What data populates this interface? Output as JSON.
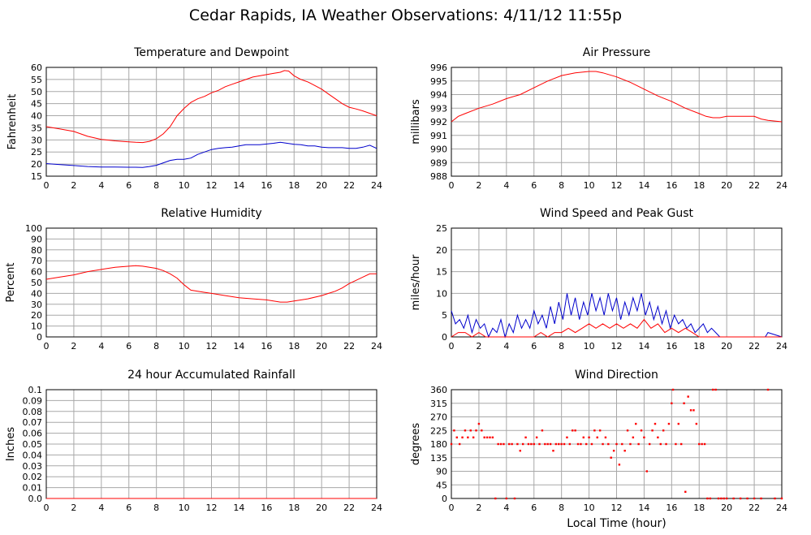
{
  "page": {
    "title": "Cedar Rapids, IA Weather Observations: 4/11/12 11:55p"
  },
  "chart_data": [
    {
      "id": "temp",
      "type": "line",
      "title": "Temperature and Dewpoint",
      "xlabel": "",
      "ylabel": "Fahrenheit",
      "xlim": [
        0,
        24
      ],
      "ylim": [
        15,
        60
      ],
      "xticks": [
        0,
        2,
        4,
        6,
        8,
        10,
        12,
        14,
        16,
        18,
        20,
        22,
        24
      ],
      "yticks": [
        15,
        20,
        25,
        30,
        35,
        40,
        45,
        50,
        55,
        60
      ],
      "ytick_labels": [
        "15",
        "20",
        "25",
        "30",
        "35",
        "40",
        "45",
        "50",
        "55",
        "60"
      ],
      "grid": true,
      "series": [
        {
          "color": "#ff0000",
          "x": [
            0,
            1,
            2,
            3,
            4,
            5,
            6,
            6.5,
            7,
            7.5,
            8,
            8.5,
            9,
            9.5,
            10,
            10.5,
            11,
            11.5,
            12,
            12.5,
            13,
            13.5,
            14,
            14.5,
            15,
            15.5,
            16,
            16.5,
            17,
            17.3,
            17.6,
            18,
            18.5,
            19,
            19.5,
            20,
            20.5,
            21,
            21.5,
            22,
            22.5,
            23,
            23.5,
            24
          ],
          "y": [
            35.5,
            34.5,
            33.5,
            31.5,
            30.2,
            29.6,
            29.2,
            29,
            28.9,
            29.4,
            30.5,
            32.5,
            35.5,
            40,
            43,
            45.5,
            47,
            48,
            49.5,
            50.5,
            52,
            53,
            54,
            55,
            56,
            56.5,
            57,
            57.5,
            58,
            58.7,
            58.5,
            56.5,
            55,
            54,
            52.5,
            51,
            49,
            47,
            45,
            43.5,
            42.8,
            42,
            41,
            40
          ]
        },
        {
          "color": "#0000cc",
          "x": [
            0,
            1,
            2,
            3,
            4,
            5,
            6,
            6.5,
            7,
            7.5,
            8,
            8.5,
            9,
            9.5,
            10,
            10.5,
            11,
            11.5,
            12,
            12.5,
            13,
            13.5,
            14,
            14.5,
            15,
            15.5,
            16,
            16.5,
            17,
            17.5,
            18,
            18.5,
            19,
            19.5,
            20,
            20.5,
            21,
            21.5,
            22,
            22.5,
            23,
            23.5,
            24
          ],
          "y": [
            20.2,
            19.8,
            19.4,
            19,
            18.8,
            18.8,
            18.7,
            18.7,
            18.6,
            19,
            19.5,
            20.5,
            21.5,
            22,
            22,
            22.5,
            24,
            25,
            26,
            26.5,
            26.8,
            27,
            27.5,
            28,
            28,
            28,
            28.3,
            28.6,
            29,
            28.6,
            28.2,
            28,
            27.5,
            27.5,
            27,
            26.8,
            26.8,
            26.8,
            26.5,
            26.5,
            27,
            27.8,
            26.5
          ]
        }
      ]
    },
    {
      "id": "pressure",
      "type": "line",
      "title": "Air Pressure",
      "xlabel": "",
      "ylabel": "millibars",
      "xlim": [
        0,
        24
      ],
      "ylim": [
        988,
        996
      ],
      "xticks": [
        0,
        2,
        4,
        6,
        8,
        10,
        12,
        14,
        16,
        18,
        20,
        22,
        24
      ],
      "yticks": [
        988,
        989,
        990,
        991,
        992,
        993,
        994,
        995,
        996
      ],
      "ytick_labels": [
        "988",
        "989",
        "990",
        "991",
        "992",
        "993",
        "994",
        "995",
        "996"
      ],
      "grid": true,
      "series": [
        {
          "color": "#ff0000",
          "x": [
            0,
            0.5,
            1,
            2,
            3,
            4,
            5,
            6,
            7,
            8,
            9,
            10,
            10.5,
            11,
            12,
            13,
            14,
            15,
            16,
            17,
            18,
            18.5,
            19,
            19.5,
            20,
            21,
            22,
            22.5,
            23,
            24
          ],
          "y": [
            992,
            992.4,
            992.6,
            993,
            993.3,
            993.7,
            994,
            994.5,
            995,
            995.4,
            995.6,
            995.7,
            995.7,
            995.6,
            995.3,
            994.9,
            994.4,
            993.9,
            993.5,
            993,
            992.6,
            992.4,
            992.3,
            992.3,
            992.4,
            992.4,
            992.4,
            992.2,
            992.1,
            992
          ]
        }
      ]
    },
    {
      "id": "humidity",
      "type": "line",
      "title": "Relative Humidity",
      "xlabel": "",
      "ylabel": "Percent",
      "xlim": [
        0,
        24
      ],
      "ylim": [
        0,
        100
      ],
      "xticks": [
        0,
        2,
        4,
        6,
        8,
        10,
        12,
        14,
        16,
        18,
        20,
        22,
        24
      ],
      "yticks": [
        0,
        10,
        20,
        30,
        40,
        50,
        60,
        70,
        80,
        90,
        100
      ],
      "ytick_labels": [
        "0",
        "10",
        "20",
        "30",
        "40",
        "50",
        "60",
        "70",
        "80",
        "90",
        "100"
      ],
      "grid": true,
      "series": [
        {
          "color": "#ff0000",
          "x": [
            0,
            1,
            2,
            3,
            4,
            5,
            6,
            6.5,
            7,
            7.5,
            8,
            8.5,
            9,
            9.5,
            10,
            10.5,
            11,
            11.5,
            12,
            13,
            14,
            15,
            16,
            16.5,
            17,
            17.5,
            18,
            19,
            20,
            20.5,
            21,
            21.5,
            22,
            22.5,
            23,
            23.5,
            24
          ],
          "y": [
            53,
            55,
            57,
            60,
            62,
            64,
            65,
            65.5,
            65,
            64,
            63,
            61,
            58,
            54,
            48,
            43,
            42,
            41,
            40,
            38,
            36,
            35,
            34,
            33,
            32,
            32,
            33,
            35,
            38,
            40,
            42,
            45,
            49,
            52,
            55,
            58,
            58
          ]
        }
      ]
    },
    {
      "id": "wind",
      "type": "line",
      "title": "Wind Speed and Peak Gust",
      "xlabel": "",
      "ylabel": "miles/hour",
      "xlim": [
        0,
        24
      ],
      "ylim": [
        0,
        25
      ],
      "xticks": [
        0,
        2,
        4,
        6,
        8,
        10,
        12,
        14,
        16,
        18,
        20,
        22,
        24
      ],
      "yticks": [
        0,
        5,
        10,
        15,
        20,
        25
      ],
      "ytick_labels": [
        "0",
        "5",
        "10",
        "15",
        "20",
        "25"
      ],
      "grid": true,
      "series": [
        {
          "color": "#0000cc",
          "x": [
            0,
            0.3,
            0.6,
            0.9,
            1.2,
            1.5,
            1.8,
            2.1,
            2.4,
            2.7,
            3,
            3.3,
            3.6,
            3.9,
            4.2,
            4.5,
            4.8,
            5.1,
            5.4,
            5.7,
            6,
            6.3,
            6.6,
            6.9,
            7.2,
            7.5,
            7.8,
            8.1,
            8.4,
            8.7,
            9,
            9.3,
            9.6,
            9.9,
            10.2,
            10.5,
            10.8,
            11.1,
            11.4,
            11.7,
            12,
            12.3,
            12.6,
            12.9,
            13.2,
            13.5,
            13.8,
            14.1,
            14.4,
            14.7,
            15,
            15.3,
            15.6,
            15.9,
            16.2,
            16.5,
            16.8,
            17.1,
            17.4,
            17.7,
            18,
            18.3,
            18.6,
            18.9,
            19.2,
            19.5,
            20,
            21,
            22,
            22.8,
            23,
            24
          ],
          "y": [
            6,
            3,
            4,
            2,
            5,
            1,
            4,
            2,
            3,
            0,
            2,
            1,
            4,
            0,
            3,
            1,
            5,
            2,
            4,
            2,
            6,
            3,
            5,
            2,
            7,
            3,
            8,
            4,
            10,
            5,
            9,
            4,
            8,
            5,
            10,
            6,
            9,
            5,
            10,
            6,
            9,
            4,
            8,
            5,
            9,
            6,
            10,
            5,
            8,
            4,
            7,
            3,
            6,
            2,
            5,
            3,
            4,
            2,
            3,
            1,
            2,
            3,
            1,
            2,
            1,
            0,
            0,
            0,
            0,
            0,
            1,
            0
          ]
        },
        {
          "color": "#ff0000",
          "x": [
            0,
            0.5,
            1,
            1.5,
            2,
            2.5,
            3,
            4,
            5,
            6,
            6.5,
            7,
            7.5,
            8,
            8.5,
            9,
            9.5,
            10,
            10.5,
            11,
            11.5,
            12,
            12.5,
            13,
            13.5,
            14,
            14.5,
            15,
            15.5,
            16,
            16.5,
            17,
            17.5,
            18,
            19,
            20,
            21,
            22,
            23,
            24
          ],
          "y": [
            0,
            1,
            1,
            0,
            1,
            0,
            0,
            0,
            0,
            0,
            1,
            0,
            1,
            1,
            2,
            1,
            2,
            3,
            2,
            3,
            2,
            3,
            2,
            3,
            2,
            4,
            2,
            3,
            1,
            2,
            1,
            2,
            1,
            0,
            0,
            0,
            0,
            0,
            0,
            0
          ]
        }
      ]
    },
    {
      "id": "rain",
      "type": "line",
      "title": "24 hour Accumulated Rainfall",
      "xlabel": "",
      "ylabel": "Inches",
      "xlim": [
        0,
        24
      ],
      "ylim": [
        0,
        0.1
      ],
      "xticks": [
        0,
        2,
        4,
        6,
        8,
        10,
        12,
        14,
        16,
        18,
        20,
        22,
        24
      ],
      "yticks": [
        0,
        0.01,
        0.02,
        0.03,
        0.04,
        0.05,
        0.06,
        0.07,
        0.08,
        0.09,
        0.1
      ],
      "ytick_labels": [
        "0.0",
        "0.01",
        "0.02",
        "0.03",
        "0.04",
        "0.05",
        "0.06",
        "0.07",
        "0.08",
        "0.09",
        "0.1"
      ],
      "grid": true,
      "series": [
        {
          "color": "#ff0000",
          "x": [
            0,
            24
          ],
          "y": [
            0,
            0
          ]
        }
      ]
    },
    {
      "id": "direction",
      "type": "scatter",
      "title": "Wind Direction",
      "xlabel": "Local Time (hour)",
      "ylabel": "degrees",
      "xlim": [
        0,
        24
      ],
      "ylim": [
        0,
        360
      ],
      "xticks": [
        0,
        2,
        4,
        6,
        8,
        10,
        12,
        14,
        16,
        18,
        20,
        22,
        24
      ],
      "yticks": [
        0,
        45,
        90,
        135,
        180,
        225,
        270,
        315,
        360
      ],
      "ytick_labels": [
        "0",
        "45",
        "90",
        "135",
        "180",
        "225",
        "270",
        "315",
        "360"
      ],
      "grid": true,
      "series": [
        {
          "color": "#ff0000",
          "x": [
            0,
            0.2,
            0.4,
            0.6,
            0.8,
            1,
            1.2,
            1.4,
            1.6,
            1.8,
            2,
            2.2,
            2.4,
            2.6,
            2.8,
            3,
            3.2,
            3.4,
            3.6,
            3.8,
            4,
            4.2,
            4.4,
            4.6,
            4.8,
            5,
            5.2,
            5.4,
            5.6,
            5.8,
            6,
            6.2,
            6.4,
            6.6,
            6.8,
            7,
            7.2,
            7.4,
            7.6,
            7.8,
            8,
            8.2,
            8.4,
            8.6,
            8.8,
            9,
            9.2,
            9.4,
            9.6,
            9.8,
            10,
            10.2,
            10.4,
            10.6,
            10.8,
            11,
            11.2,
            11.4,
            11.6,
            11.8,
            12,
            12.2,
            12.4,
            12.6,
            12.8,
            13,
            13.2,
            13.4,
            13.6,
            13.8,
            14,
            14.2,
            14.4,
            14.6,
            14.8,
            15,
            15.2,
            15.4,
            15.6,
            15.8,
            16,
            16.1,
            16.3,
            16.5,
            16.7,
            16.9,
            17,
            17.2,
            17.4,
            17.6,
            17.8,
            18,
            18.2,
            18.4,
            18.6,
            18.8,
            19,
            19.2,
            19.4,
            19.6,
            19.8,
            20,
            20.5,
            21,
            21.5,
            22,
            22.5,
            23,
            23.5,
            24
          ],
          "y": [
            180,
            225,
            202,
            180,
            202,
            225,
            202,
            225,
            202,
            225,
            247,
            225,
            202,
            202,
            202,
            202,
            0,
            180,
            180,
            180,
            0,
            180,
            180,
            0,
            180,
            158,
            180,
            202,
            180,
            180,
            180,
            202,
            180,
            225,
            180,
            180,
            180,
            158,
            180,
            180,
            180,
            180,
            202,
            180,
            225,
            225,
            180,
            180,
            202,
            180,
            202,
            180,
            225,
            202,
            225,
            180,
            202,
            180,
            135,
            158,
            180,
            112,
            180,
            158,
            225,
            180,
            202,
            247,
            180,
            225,
            202,
            90,
            180,
            225,
            247,
            202,
            180,
            225,
            180,
            247,
            315,
            360,
            180,
            247,
            180,
            315,
            22,
            337,
            292,
            292,
            247,
            180,
            180,
            180,
            0,
            0,
            360,
            360,
            0,
            0,
            0,
            0,
            0,
            0,
            0,
            0,
            0,
            360,
            0,
            0
          ]
        }
      ]
    }
  ]
}
